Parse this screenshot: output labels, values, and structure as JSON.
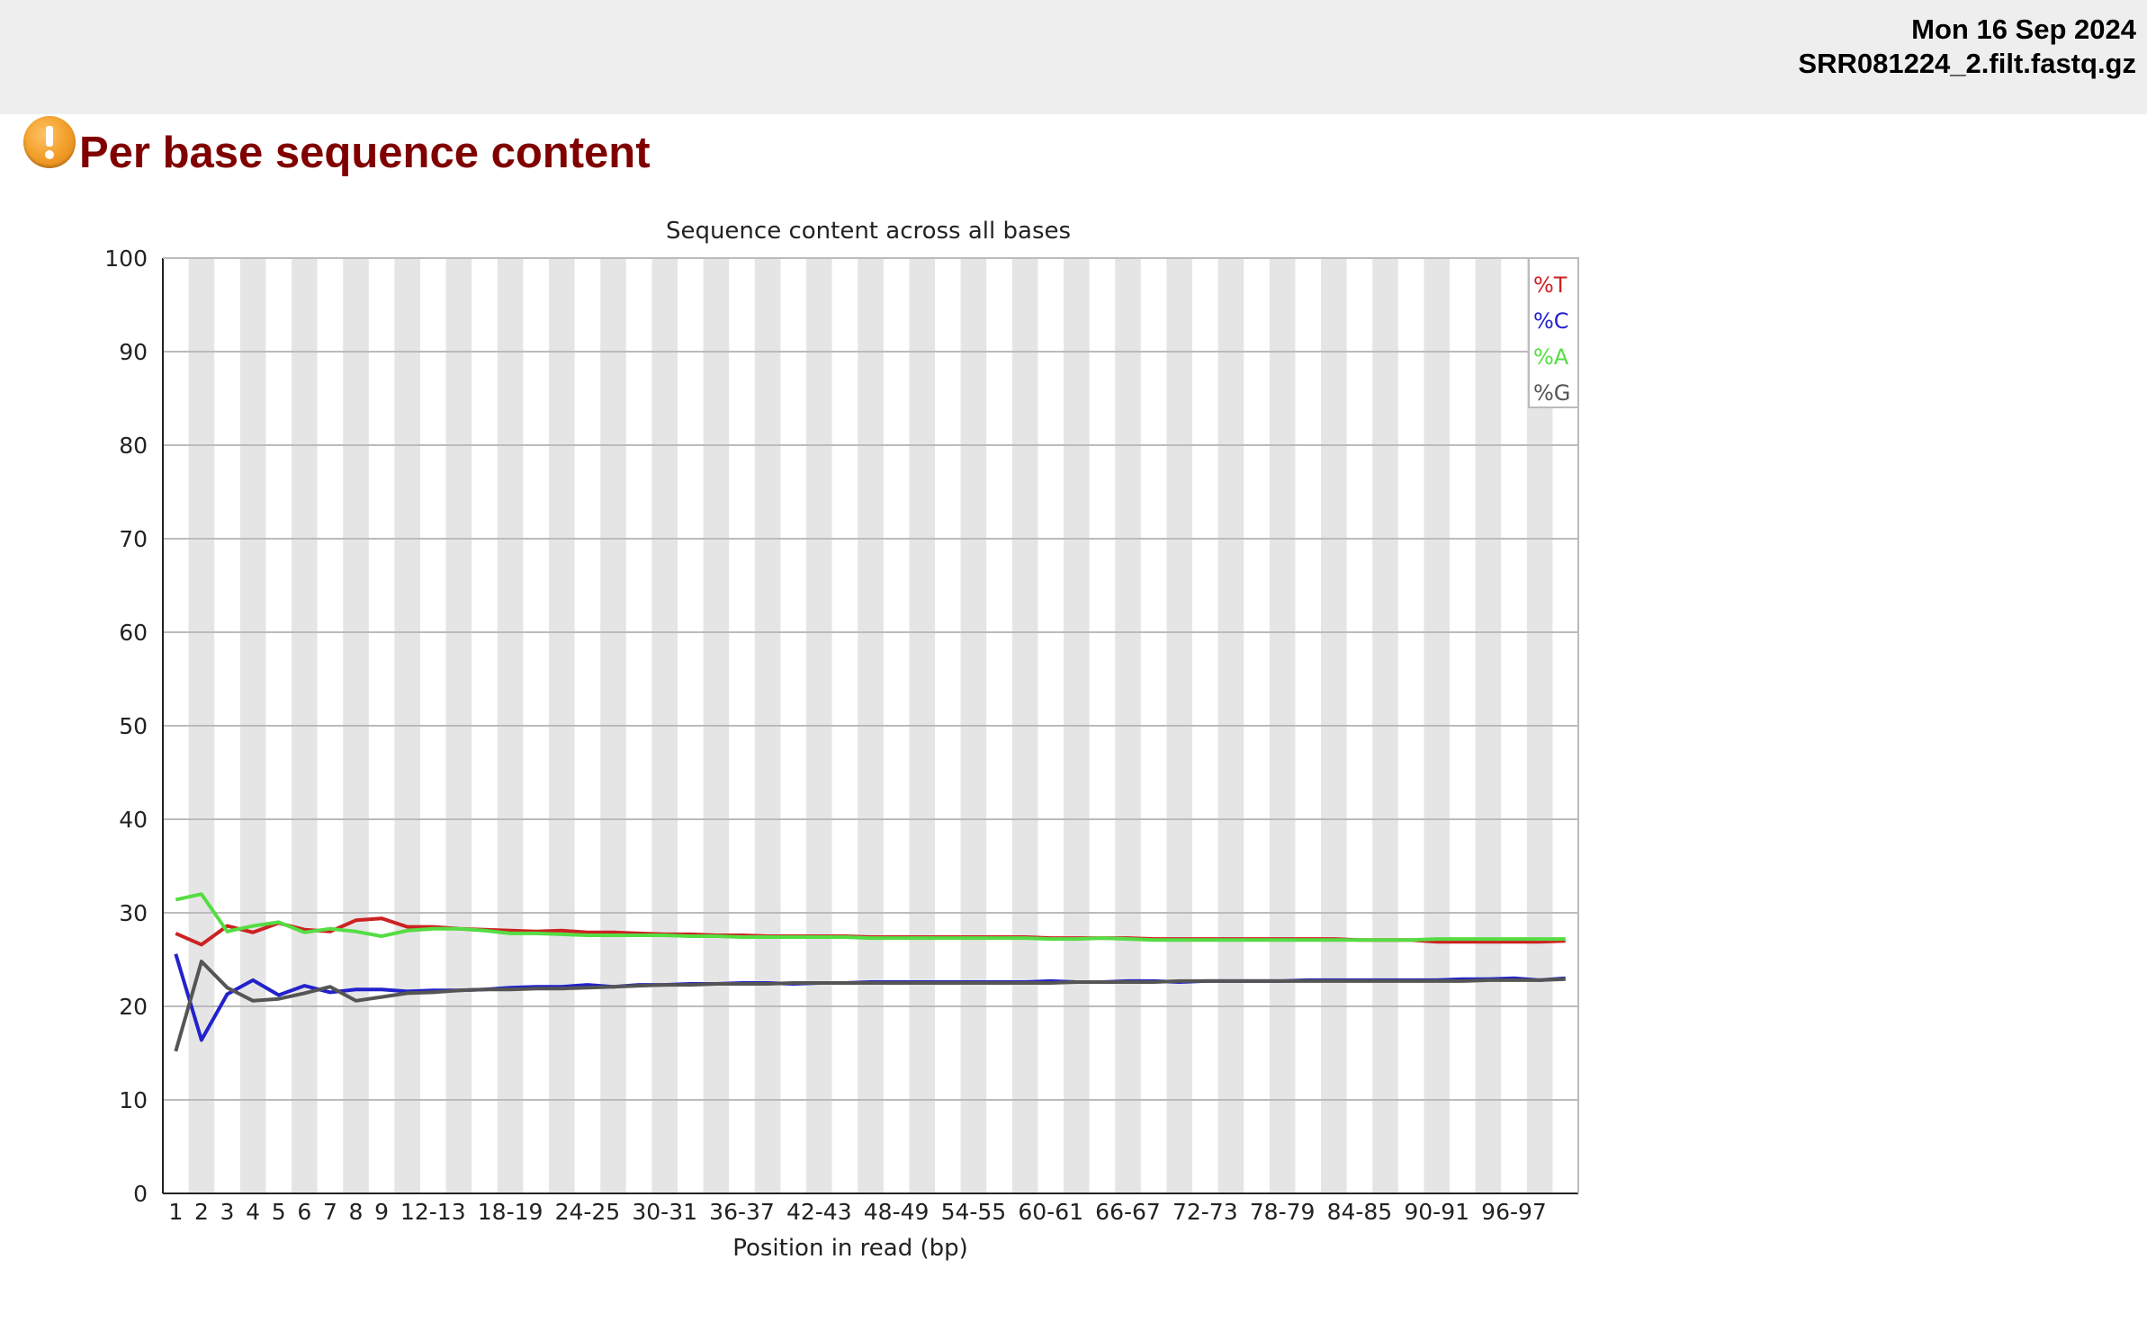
{
  "header": {
    "date": "Mon 16 Sep 2024",
    "filename": "SRR081224_2.filt.fastq.gz"
  },
  "module": {
    "title": "Per base sequence content",
    "status_icon": "warning-icon",
    "status_color": "#f4a32f",
    "title_color": "#800000"
  },
  "chart_data": {
    "type": "line",
    "title": "Sequence content across all bases",
    "xlabel": "Position in read (bp)",
    "ylabel": "",
    "ylim": [
      0,
      100
    ],
    "yticks": [
      0,
      10,
      20,
      30,
      40,
      50,
      60,
      70,
      80,
      90,
      100
    ],
    "grid": true,
    "legend_position": "top-right",
    "categories": [
      "1",
      "2",
      "3",
      "4",
      "5",
      "6",
      "7",
      "8",
      "9",
      "10-11",
      "12-13",
      "14-15",
      "16-17",
      "18-19",
      "20-21",
      "22-23",
      "24-25",
      "26-27",
      "28-29",
      "30-31",
      "32-33",
      "34-35",
      "36-37",
      "38-39",
      "40-41",
      "42-43",
      "44-45",
      "46-47",
      "48-49",
      "50-51",
      "52-53",
      "54-55",
      "56-57",
      "58-59",
      "60-61",
      "62-63",
      "64-65",
      "66-67",
      "68-69",
      "70-71",
      "72-73",
      "74-75",
      "76-77",
      "78-79",
      "80-81",
      "82-83",
      "84-85",
      "86-87",
      "88-89",
      "90-91",
      "92-93",
      "94-95",
      "96-97",
      "98-99",
      "100-101"
    ],
    "tick_labels": [
      "1",
      "2",
      "3",
      "4",
      "5",
      "6",
      "7",
      "8",
      "9",
      "12-13",
      "18-19",
      "24-25",
      "30-31",
      "36-37",
      "42-43",
      "48-49",
      "54-55",
      "60-61",
      "66-67",
      "72-73",
      "78-79",
      "84-85",
      "90-91",
      "96-97"
    ],
    "series": [
      {
        "name": "%T",
        "color": "#cc2222",
        "values": [
          27.8,
          26.6,
          28.6,
          27.9,
          28.9,
          28.2,
          28.0,
          29.2,
          29.4,
          28.5,
          28.5,
          28.3,
          28.2,
          28.1,
          28.0,
          28.1,
          27.9,
          27.9,
          27.8,
          27.7,
          27.7,
          27.6,
          27.6,
          27.5,
          27.5,
          27.5,
          27.5,
          27.4,
          27.4,
          27.4,
          27.4,
          27.4,
          27.4,
          27.4,
          27.3,
          27.3,
          27.3,
          27.3,
          27.2,
          27.2,
          27.2,
          27.2,
          27.2,
          27.2,
          27.2,
          27.2,
          27.1,
          27.1,
          27.1,
          26.9,
          26.9,
          26.9,
          26.9,
          26.9,
          27.0
        ]
      },
      {
        "name": "%C",
        "color": "#2222cc",
        "values": [
          25.6,
          16.4,
          21.3,
          22.8,
          21.2,
          22.2,
          21.5,
          21.8,
          21.8,
          21.6,
          21.7,
          21.7,
          21.8,
          22.0,
          22.1,
          22.1,
          22.3,
          22.1,
          22.3,
          22.3,
          22.4,
          22.4,
          22.5,
          22.5,
          22.4,
          22.5,
          22.5,
          22.6,
          22.6,
          22.6,
          22.6,
          22.6,
          22.6,
          22.6,
          22.7,
          22.6,
          22.6,
          22.7,
          22.7,
          22.6,
          22.7,
          22.7,
          22.7,
          22.7,
          22.8,
          22.8,
          22.8,
          22.8,
          22.8,
          22.8,
          22.9,
          22.9,
          23.0,
          22.8,
          23.0
        ]
      },
      {
        "name": "%A",
        "color": "#55dd44",
        "values": [
          31.4,
          32.0,
          28.0,
          28.6,
          29.0,
          27.9,
          28.3,
          28.0,
          27.5,
          28.1,
          28.3,
          28.3,
          28.1,
          27.8,
          27.8,
          27.7,
          27.6,
          27.6,
          27.6,
          27.6,
          27.5,
          27.5,
          27.4,
          27.4,
          27.4,
          27.4,
          27.4,
          27.3,
          27.3,
          27.3,
          27.3,
          27.3,
          27.3,
          27.3,
          27.2,
          27.2,
          27.3,
          27.2,
          27.1,
          27.1,
          27.1,
          27.1,
          27.1,
          27.1,
          27.1,
          27.1,
          27.1,
          27.1,
          27.1,
          27.2,
          27.2,
          27.2,
          27.2,
          27.2,
          27.2
        ]
      },
      {
        "name": "%G",
        "color": "#555555",
        "values": [
          15.2,
          24.8,
          22.0,
          20.6,
          20.8,
          21.4,
          22.1,
          20.6,
          21.0,
          21.4,
          21.5,
          21.7,
          21.8,
          21.8,
          21.9,
          21.9,
          22.0,
          22.1,
          22.2,
          22.3,
          22.3,
          22.4,
          22.4,
          22.4,
          22.5,
          22.5,
          22.5,
          22.5,
          22.5,
          22.5,
          22.5,
          22.5,
          22.5,
          22.5,
          22.5,
          22.6,
          22.6,
          22.6,
          22.6,
          22.7,
          22.7,
          22.7,
          22.7,
          22.7,
          22.7,
          22.7,
          22.7,
          22.7,
          22.7,
          22.7,
          22.7,
          22.8,
          22.8,
          22.8,
          22.9
        ]
      }
    ]
  }
}
